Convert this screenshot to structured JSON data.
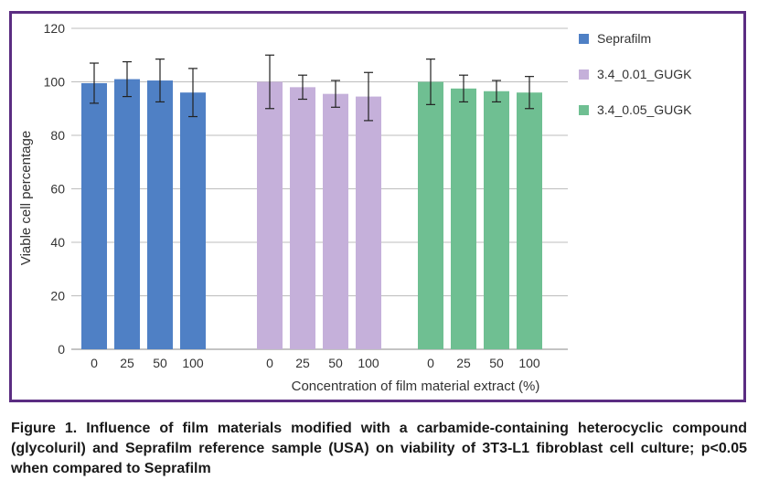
{
  "chart_data": {
    "type": "bar",
    "title": "",
    "xlabel": "Concentration of film material extract (%)",
    "ylabel": "Viable cell percentage",
    "ylim": [
      0,
      120
    ],
    "yticks": [
      0,
      20,
      40,
      60,
      80,
      100,
      120
    ],
    "grid": true,
    "legend_position": "right",
    "error_bars": true,
    "groups": [
      {
        "name": "Seprafilm",
        "color": "#4f80c5",
        "categories": [
          "0",
          "25",
          "50",
          "100"
        ],
        "values": [
          99.5,
          101,
          100.5,
          96
        ],
        "errors": [
          7.5,
          6.5,
          8,
          9
        ]
      },
      {
        "name": "3.4_0.01_GUGK",
        "color": "#c5b0da",
        "categories": [
          "0",
          "25",
          "50",
          "100"
        ],
        "values": [
          100,
          98,
          95.5,
          94.5
        ],
        "errors": [
          10,
          4.5,
          5,
          9
        ]
      },
      {
        "name": "3.4_0.05_GUGK",
        "color": "#6fbf92",
        "categories": [
          "0",
          "25",
          "50",
          "100"
        ],
        "values": [
          100,
          97.5,
          96.5,
          96
        ],
        "errors": [
          8.5,
          5,
          4,
          6
        ]
      }
    ]
  },
  "caption": "Figure 1. Influence of film materials modified with a carbamide-containing heterocyclic compound (glycoluril) and Seprafilm reference sample (USA) on viability of 3T3-L1 fibroblast cell culture; p<0.05 when compared to Seprafilm"
}
